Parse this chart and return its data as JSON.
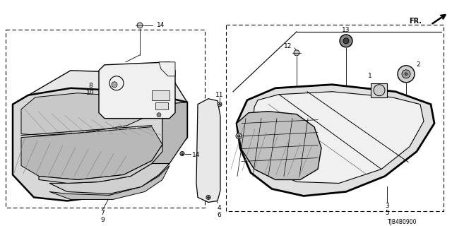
{
  "bg_color": "#ffffff",
  "diagram_id": "TJB4B0900",
  "line_color": "#000000",
  "gray_fill": "#e0e0e0",
  "dark_gray": "#b0b0b0",
  "light_gray": "#f0f0f0"
}
